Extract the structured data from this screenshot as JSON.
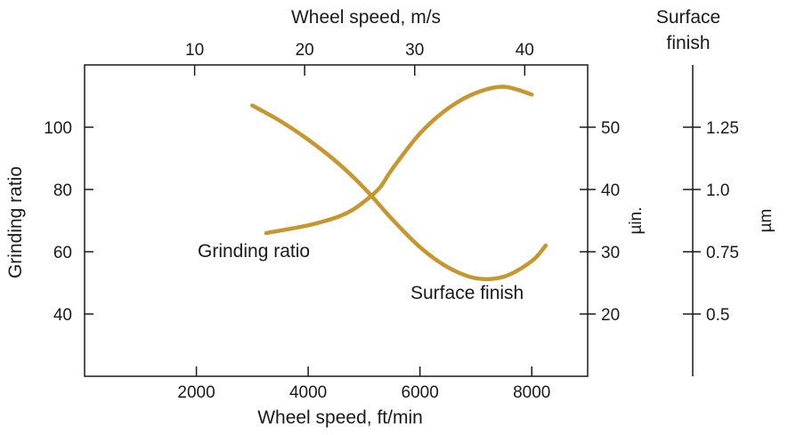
{
  "chart_data": {
    "type": "line",
    "title": "",
    "xlabel": "Wheel speed, ft/min",
    "x_top_label": "Wheel speed, m/s",
    "ylabel": "Grinding ratio",
    "y_right_title": "Surface finish",
    "y_right_inner_unit": "µin.",
    "y_right_outer_unit": "µm",
    "xlim": [
      0,
      9000
    ],
    "ylim": [
      20,
      120
    ],
    "x_ticks": [
      "2000",
      "4000",
      "6000",
      "8000"
    ],
    "x_top_ticks": [
      "10",
      "20",
      "30",
      "40"
    ],
    "y_ticks": [
      "40",
      "60",
      "80",
      "100"
    ],
    "y_right_inner_ticks": [
      "20",
      "30",
      "40",
      "50"
    ],
    "y_right_outer_ticks": [
      "0.5",
      "0.75",
      "1.0",
      "1.25"
    ],
    "line_color": "#c8962e",
    "series": [
      {
        "name": "Grinding ratio",
        "x": [
          3250,
          4000,
          4500,
          4800,
          5100,
          5300,
          5500,
          6000,
          6500,
          7000,
          7500,
          8000
        ],
        "y": [
          66,
          68.5,
          71,
          73.5,
          77.5,
          81,
          86.5,
          98,
          106,
          111,
          113,
          110.5
        ]
      },
      {
        "name": "Surface finish",
        "x": [
          3000,
          3500,
          4000,
          4500,
          5000,
          5500,
          6000,
          6500,
          7000,
          7500,
          8000,
          8250
        ],
        "y": [
          107,
          102,
          96,
          89,
          80.5,
          70.5,
          61.5,
          55,
          51.5,
          52,
          57,
          62
        ]
      }
    ]
  }
}
